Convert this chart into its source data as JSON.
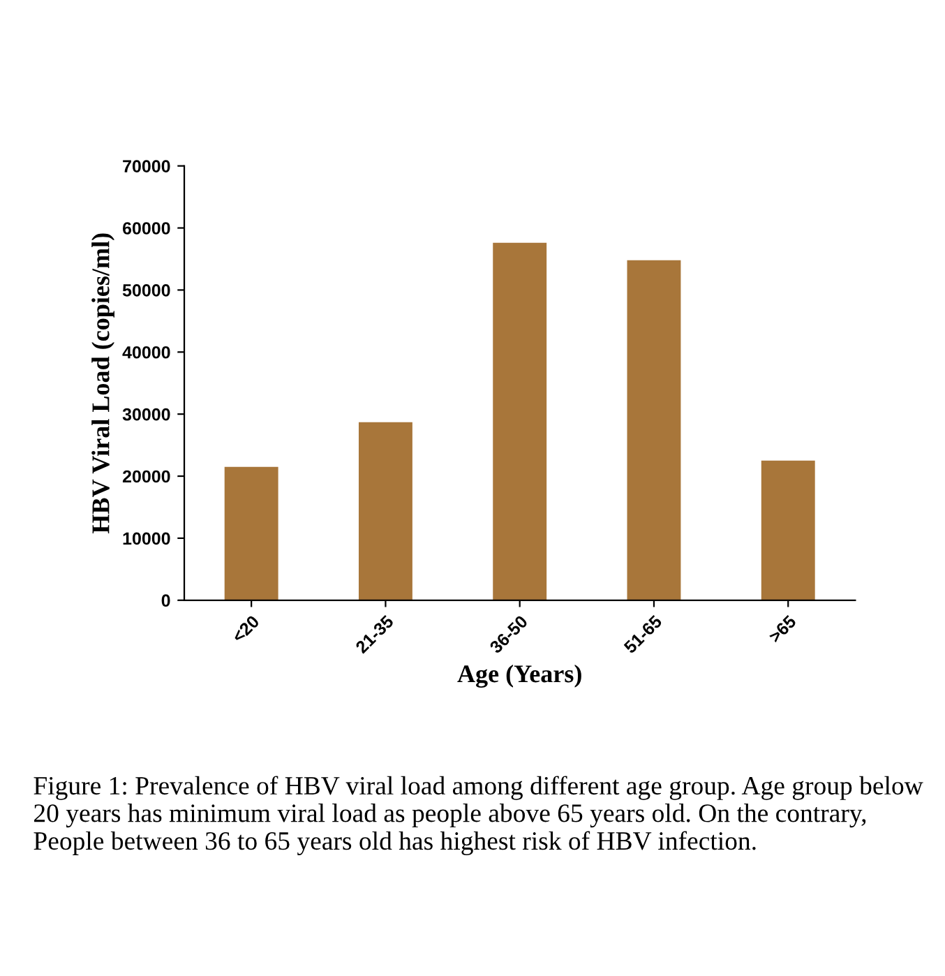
{
  "chart_data": {
    "type": "bar",
    "xlabel": "Age (Years)",
    "ylabel": "HBV Viral Load (copies/ml)",
    "categories": [
      "<20",
      "21-35",
      "36-50",
      "51-65",
      ">65"
    ],
    "values": [
      21500,
      28700,
      57600,
      54800,
      22500
    ],
    "color": "#a8763a",
    "ylim": [
      0,
      70000
    ],
    "yticks": [
      0,
      10000,
      20000,
      30000,
      40000,
      50000,
      60000,
      70000
    ],
    "grid": false,
    "legend": false,
    "annotations": [
      "Figure 1: Prevalence of HBV viral load among different age group. Age group below 20 years has minimum viral load as people above 65 years old. On the contrary, People between 36 to 65 years old has highest risk of HBV infection."
    ]
  }
}
